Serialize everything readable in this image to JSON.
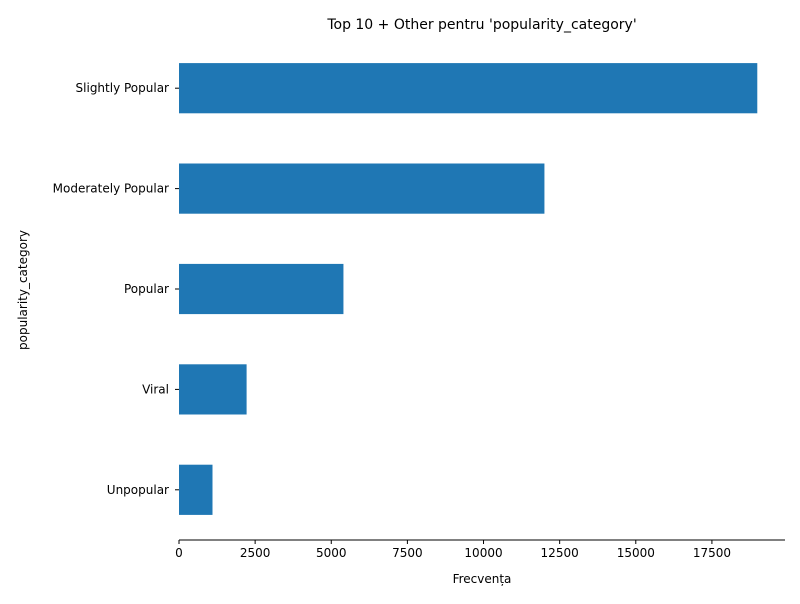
{
  "chart_data": {
    "type": "bar",
    "orientation": "horizontal",
    "title": "Top 10 + Other pentru 'popularity_category'",
    "xlabel": "Frecvența",
    "ylabel": "popularity_category",
    "categories": [
      "Slightly Popular",
      "Moderately Popular",
      "Popular",
      "Viral",
      "Unpopular"
    ],
    "values": [
      18990,
      12000,
      5400,
      2220,
      1100
    ],
    "xlim": [
      0,
      19900
    ],
    "xticks": [
      0,
      2500,
      5000,
      7500,
      10000,
      12500,
      15000,
      17500
    ],
    "xtick_labels": [
      "0",
      "2500",
      "5000",
      "7500",
      "10000",
      "12500",
      "15000",
      "17500"
    ],
    "bar_color": "#1f77b4",
    "grid": false,
    "legend": "none"
  }
}
